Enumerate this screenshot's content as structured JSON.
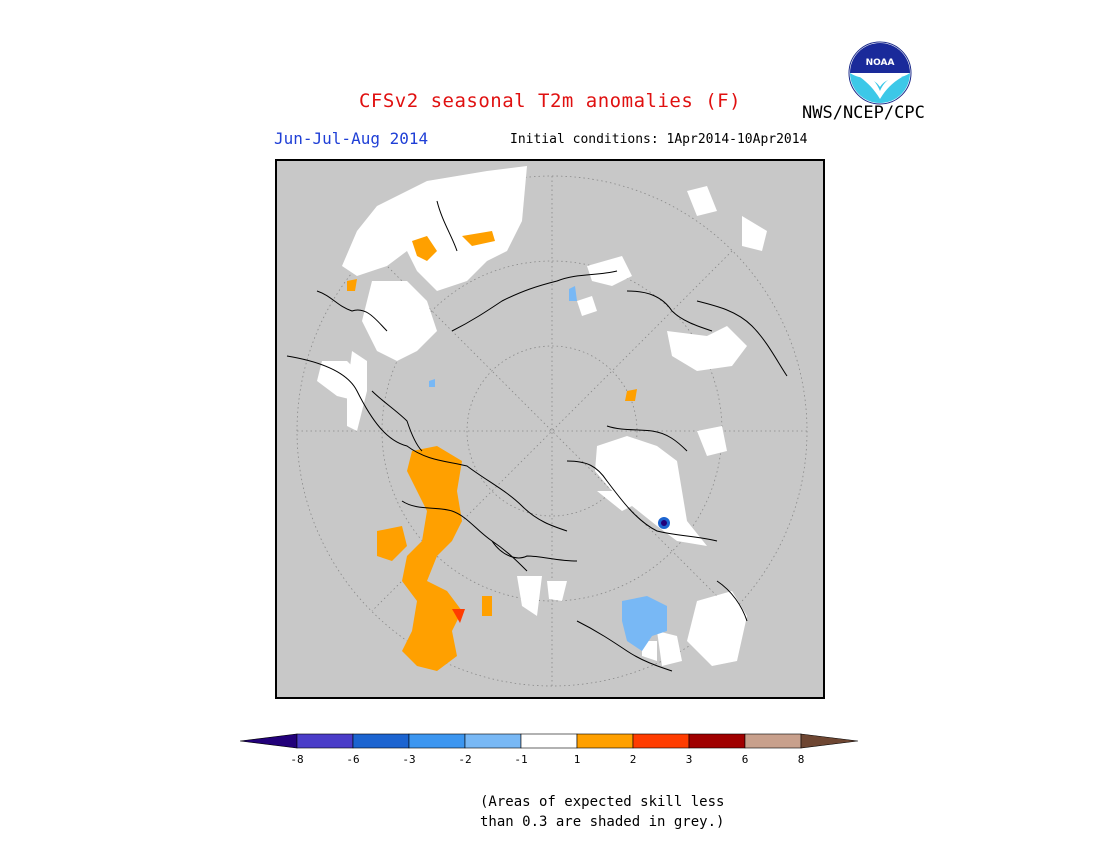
{
  "header": {
    "title": "CFSv2 seasonal T2m anomalies (F)",
    "period": "Jun-Jul-Aug 2014",
    "initial_conditions": "Initial conditions: 1Apr2014-10Apr2014",
    "agency": "NWS/NCEP/CPC",
    "logo_text": "NOAA"
  },
  "colors": {
    "skill_grey": "#c8c8c8",
    "title_red": "#e01010",
    "period_blue": "#1f3fd6"
  },
  "legend": {
    "ticks": [
      "-8",
      "-6",
      "-3",
      "-2",
      "-1",
      "1",
      "2",
      "3",
      "6",
      "8"
    ],
    "segment_colors": [
      "#22007a",
      "#4a3cc8",
      "#1c64d0",
      "#3c96f0",
      "#78b8f5",
      "#ffffff",
      "#ffa000",
      "#ff3c00",
      "#a00000",
      "#c8a08c",
      "#6e4632"
    ]
  },
  "footnote": {
    "line1": "(Areas of expected skill less",
    "line2": "than 0.3 are shaded in grey.)"
  }
}
